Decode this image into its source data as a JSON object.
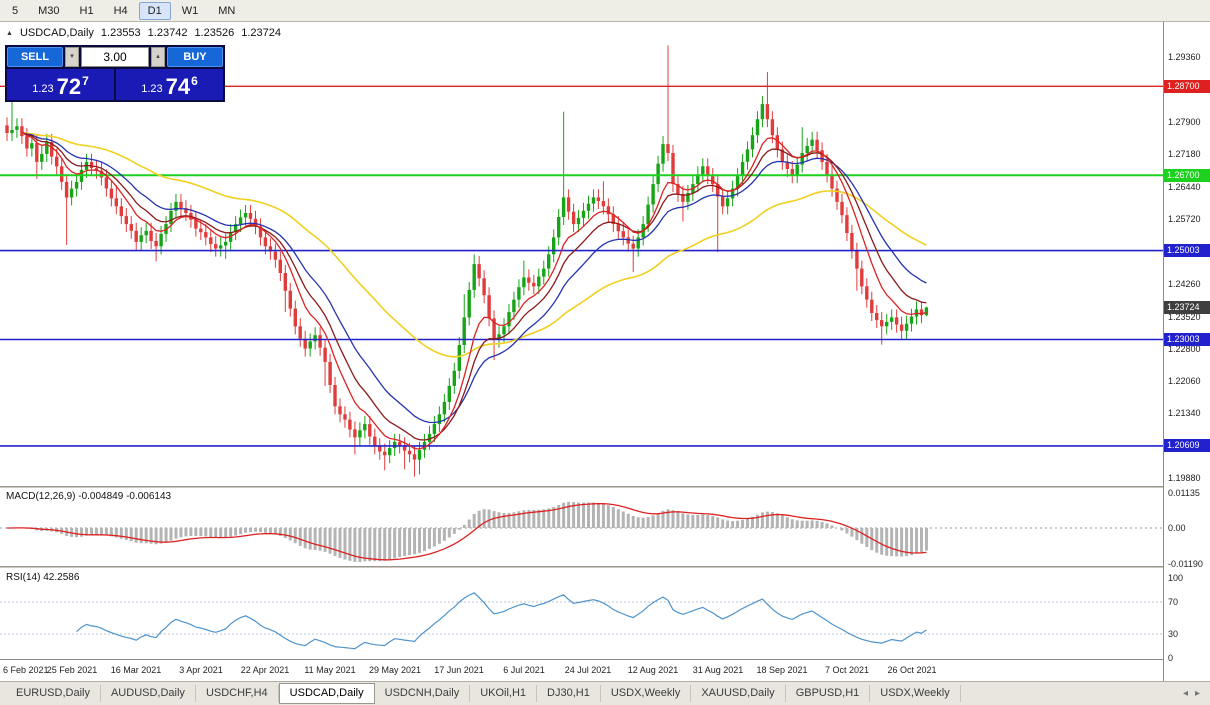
{
  "colors": {
    "bull": "#17a517",
    "bear": "#e03c3c",
    "ma_fast": "#dd2222",
    "ma_mid": "#8b1a1a",
    "ma_slow_blue": "#2633b0",
    "ma_slow_yellow": "#f0d020",
    "macd_hist": "#b4b4b4",
    "macd_signal": "#dd2222",
    "rsi_line": "#4e94cc",
    "current_badge": "#3f3f3f"
  },
  "toolbar": {
    "timeframes": [
      {
        "label": "5",
        "active": false
      },
      {
        "label": "M30",
        "active": false
      },
      {
        "label": "H1",
        "active": false
      },
      {
        "label": "H4",
        "active": false
      },
      {
        "label": "D1",
        "active": true
      },
      {
        "label": "W1",
        "active": false
      },
      {
        "label": "MN",
        "active": false
      }
    ]
  },
  "chart_header": {
    "collapse_icon": "▲",
    "symbol": "USDCAD,Daily",
    "open": "1.23553",
    "high": "1.23742",
    "low": "1.23526",
    "close": "1.23724"
  },
  "trade_panel": {
    "sell_label": "SELL",
    "buy_label": "BUY",
    "volume": "3.00",
    "dropdown_icon": "▾",
    "spinner_icon": "▴",
    "sell_price": {
      "prefix": "1.23",
      "big": "72",
      "sup": "7"
    },
    "buy_price": {
      "prefix": "1.23",
      "big": "74",
      "sup": "6"
    }
  },
  "price_axis": {
    "labels": [
      {
        "text": "1.29360",
        "value": 1.2936
      },
      {
        "text": "1.27900",
        "value": 1.279
      },
      {
        "text": "1.27180",
        "value": 1.2718
      },
      {
        "text": "1.26440",
        "value": 1.2644
      },
      {
        "text": "1.25720",
        "value": 1.2572
      },
      {
        "text": "1.24260",
        "value": 1.2426
      },
      {
        "text": "1.23520",
        "value": 1.2352
      },
      {
        "text": "1.22800",
        "value": 1.228
      },
      {
        "text": "1.22060",
        "value": 1.2206
      },
      {
        "text": "1.21340",
        "value": 1.2134
      },
      {
        "text": "1.19880",
        "value": 1.1988
      }
    ],
    "badges": [
      {
        "text": "1.28700",
        "value": 1.287,
        "color": "#dd2020"
      },
      {
        "text": "1.26700",
        "value": 1.267,
        "color": "#1fd11f"
      },
      {
        "text": "1.25003",
        "value": 1.25003,
        "color": "#2222cc"
      },
      {
        "text": "1.23003",
        "value": 1.23003,
        "color": "#2222cc"
      },
      {
        "text": "1.20609",
        "value": 1.20609,
        "color": "#2222cc"
      }
    ],
    "current": {
      "text": "1.23724",
      "value": 1.23724
    }
  },
  "hlines": [
    {
      "value": 1.287,
      "color": "#dd2020",
      "width": 1.3
    },
    {
      "value": 1.267,
      "color": "#1fd11f",
      "width": 2
    },
    {
      "value": 1.25003,
      "color": "#2222cc",
      "width": 1.6
    },
    {
      "value": 1.23003,
      "color": "#2222cc",
      "width": 1.6
    },
    {
      "value": 1.20609,
      "color": "#2222cc",
      "width": 1.6
    }
  ],
  "macd_panel": {
    "label": "MACD(12,26,9) -0.004849 -0.006143",
    "axis_labels": [
      {
        "text": "0.01135",
        "value": 0.01135
      },
      {
        "text": "0.00",
        "value": 0
      },
      {
        "text": "-0.01190",
        "value": -0.0119
      }
    ]
  },
  "rsi_panel": {
    "label": "RSI(14) 42.2586",
    "axis_labels": [
      {
        "text": "100",
        "value": 100
      },
      {
        "text": "70",
        "value": 70
      },
      {
        "text": "30",
        "value": 30
      },
      {
        "text": "0",
        "value": 0
      }
    ],
    "levels": [
      70,
      30
    ]
  },
  "date_axis": [
    {
      "label": "6 Feb 2021",
      "day": 0
    },
    {
      "label": "25 Feb 2021",
      "day": 13
    },
    {
      "label": "16 Mar 2021",
      "day": 26
    },
    {
      "label": "3 Apr 2021",
      "day": 39
    },
    {
      "label": "22 Apr 2021",
      "day": 52
    },
    {
      "label": "11 May 2021",
      "day": 65
    },
    {
      "label": "29 May 2021",
      "day": 78
    },
    {
      "label": "17 Jun 2021",
      "day": 91
    },
    {
      "label": "6 Jul 2021",
      "day": 104
    },
    {
      "label": "24 Jul 2021",
      "day": 117
    },
    {
      "label": "12 Aug 2021",
      "day": 130
    },
    {
      "label": "31 Aug 2021",
      "day": 143
    },
    {
      "label": "18 Sep 2021",
      "day": 156
    },
    {
      "label": "7 Oct 2021",
      "day": 169
    },
    {
      "label": "26 Oct 2021",
      "day": 182
    }
  ],
  "tabs": {
    "scroll_left_icon": "◂",
    "scroll_right_icon": "▸",
    "items": [
      {
        "label": "EURUSD,Daily",
        "active": false
      },
      {
        "label": "AUDUSD,Daily",
        "active": false
      },
      {
        "label": "USDCHF,H4",
        "active": false
      },
      {
        "label": "USDCAD,Daily",
        "active": true
      },
      {
        "label": "USDCNH,Daily",
        "active": false
      },
      {
        "label": "UKOil,H1",
        "active": false
      },
      {
        "label": "DJ30,H1",
        "active": false
      },
      {
        "label": "USDX,Weekly",
        "active": false
      },
      {
        "label": "XAUUSD,Daily",
        "active": false
      },
      {
        "label": "GBPUSD,H1",
        "active": false
      },
      {
        "label": "USDX,Weekly",
        "active": false
      }
    ]
  },
  "chart_data": {
    "type": "candlestick",
    "symbol": "USDCAD",
    "timeframe": "Daily",
    "ohlc_current": {
      "open": 1.23553,
      "high": 1.23742,
      "low": 1.23526,
      "close": 1.23724
    },
    "price_range": [
      1.1975,
      1.301
    ],
    "closes": [
      1.2765,
      1.2772,
      1.278,
      1.2758,
      1.273,
      1.2742,
      1.27,
      1.2718,
      1.2745,
      1.2712,
      1.269,
      1.2655,
      1.262,
      1.264,
      1.2655,
      1.2682,
      1.27,
      1.2686,
      1.268,
      1.2665,
      1.264,
      1.2618,
      1.26,
      1.2578,
      1.256,
      1.2545,
      1.252,
      1.2535,
      1.2545,
      1.2522,
      1.251,
      1.2538,
      1.256,
      1.259,
      1.261,
      1.2596,
      1.2585,
      1.257,
      1.255,
      1.2542,
      1.253,
      1.2515,
      1.2505,
      1.2512,
      1.252,
      1.2542,
      1.256,
      1.2575,
      1.2585,
      1.2572,
      1.2555,
      1.253,
      1.251,
      1.2498,
      1.248,
      1.245,
      1.241,
      1.237,
      1.233,
      1.2302,
      1.228,
      1.2296,
      1.231,
      1.2282,
      1.225,
      1.2198,
      1.215,
      1.2132,
      1.212,
      1.2098,
      1.208,
      1.2096,
      1.211,
      1.2082,
      1.206,
      1.2048,
      1.204,
      1.2056,
      1.207,
      1.2062,
      1.205,
      1.2042,
      1.203,
      1.2052,
      1.207,
      1.2088,
      1.211,
      1.2132,
      1.216,
      1.2196,
      1.223,
      1.2288,
      1.235,
      1.2412,
      1.247,
      1.2438,
      1.24,
      1.2348,
      1.23,
      1.2312,
      1.233,
      1.2362,
      1.239,
      1.2418,
      1.244,
      1.2428,
      1.242,
      1.2442,
      1.246,
      1.2492,
      1.253,
      1.2576,
      1.262,
      1.2588,
      1.256,
      1.2574,
      1.259,
      1.2606,
      1.262,
      1.2612,
      1.26,
      1.2582,
      1.256,
      1.2544,
      1.253,
      1.2516,
      1.2505,
      1.253,
      1.256,
      1.2604,
      1.265,
      1.2696,
      1.274,
      1.272,
      1.265,
      1.2628,
      1.261,
      1.263,
      1.265,
      1.2672,
      1.269,
      1.2668,
      1.265,
      1.2622,
      1.26,
      1.2618,
      1.264,
      1.2668,
      1.27,
      1.2728,
      1.276,
      1.2796,
      1.283,
      1.2796,
      1.276,
      1.2728,
      1.27,
      1.2684,
      1.267,
      1.2694,
      1.272,
      1.2736,
      1.275,
      1.2726,
      1.27,
      1.2672,
      1.264,
      1.261,
      1.258,
      1.254,
      1.25,
      1.246,
      1.242,
      1.239,
      1.236,
      1.2344,
      1.233,
      1.234,
      1.235,
      1.2334,
      1.232,
      1.2336,
      1.2352,
      1.2368,
      1.2355,
      1.23724
    ],
    "wick_overrides": {
      "1": {
        "high": 1.2845
      },
      "6": {
        "low": 1.2662
      },
      "12": {
        "low": 1.2513
      },
      "22": {
        "high": 1.2648
      },
      "30": {
        "low": 1.2476
      },
      "44": {
        "low": 1.2482
      },
      "56": {
        "low": 1.2362
      },
      "64": {
        "low": 1.2196
      },
      "70": {
        "low": 1.2042
      },
      "76": {
        "low": 1.2006
      },
      "80": {
        "low": 1.2008
      },
      "82": {
        "low": 1.1992
      },
      "83": {
        "low": 1.1997
      },
      "92": {
        "high": 1.2402
      },
      "94": {
        "high": 1.2492
      },
      "98": {
        "low": 1.2254
      },
      "104": {
        "high": 1.2478
      },
      "112": {
        "high": 1.2813
      },
      "120": {
        "high": 1.2656
      },
      "126": {
        "low": 1.2452
      },
      "133": {
        "high": 1.2962
      },
      "136": {
        "low": 1.2566
      },
      "143": {
        "low": 1.2497
      },
      "153": {
        "high": 1.2902
      },
      "160": {
        "high": 1.2778
      },
      "166": {
        "high": 1.2692
      },
      "171": {
        "low": 1.241
      },
      "176": {
        "low": 1.2289
      },
      "180": {
        "low": 1.2302
      },
      "185": {
        "high": 1.23742,
        "low": 1.23526
      }
    },
    "ma_periods": [
      {
        "period": 8,
        "color_key": "ma_fast"
      },
      {
        "period": 13,
        "color_key": "ma_mid"
      },
      {
        "period": 21,
        "color_key": "ma_slow_blue"
      },
      {
        "period": 55,
        "color_key": "ma_slow_yellow"
      }
    ],
    "indicators": {
      "macd": {
        "fast": 12,
        "slow": 26,
        "signal": 9,
        "current_main": -0.004849,
        "current_signal": -0.006143,
        "y_range": [
          -0.0119,
          0.01135
        ]
      },
      "rsi": {
        "period": 14,
        "current": 42.2586,
        "levels": [
          70,
          30
        ]
      }
    }
  }
}
